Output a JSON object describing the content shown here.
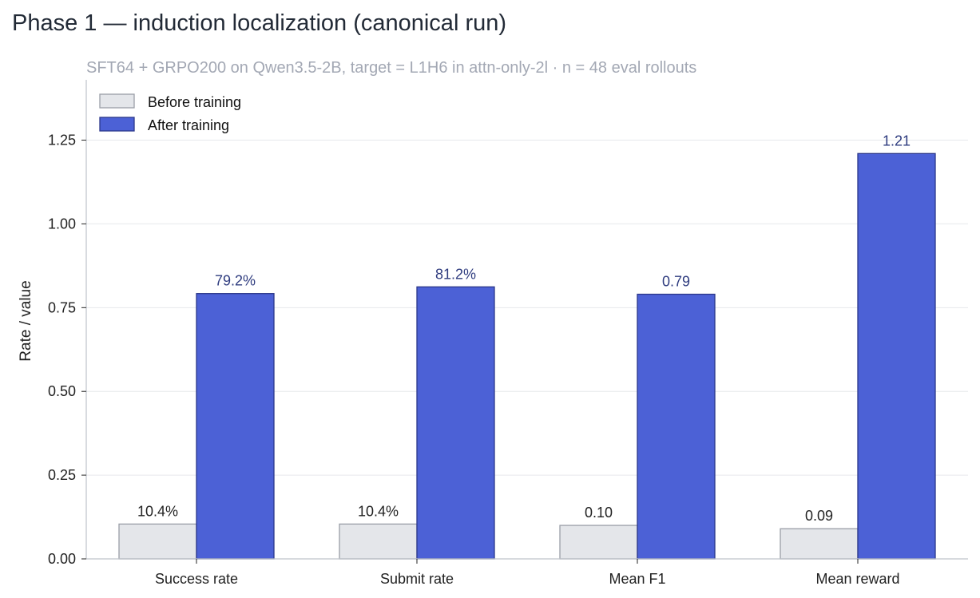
{
  "chart_data": {
    "type": "bar",
    "title": "Phase 1 — induction localization (canonical run)",
    "subtitle": "SFT64 + GRPO200 on Qwen3.5-2B, target = L1H6 in attn-only-2l   ·   n = 48 eval rollouts",
    "xlabel": "",
    "ylabel": "Rate / value",
    "categories": [
      "Success rate",
      "Submit rate",
      "Mean F1",
      "Mean reward"
    ],
    "series": [
      {
        "name": "Before training",
        "values": [
          0.104,
          0.104,
          0.1,
          0.09
        ],
        "labels": [
          "10.4%",
          "10.4%",
          "0.10",
          "0.09"
        ],
        "color": "#e4e6ea",
        "edge": "#9a9ea7"
      },
      {
        "name": "After training",
        "values": [
          0.792,
          0.812,
          0.79,
          1.21
        ],
        "labels": [
          "79.2%",
          "81.2%",
          "0.79",
          "1.21"
        ],
        "color": "#4c61d6",
        "edge": "#2b378a"
      }
    ],
    "ylim": [
      0,
      1.43
    ],
    "yticks": [
      0,
      0.25,
      0.5,
      0.75,
      1.0,
      1.25
    ],
    "ytick_labels": [
      "0.00",
      "0.25",
      "0.50",
      "0.75",
      "1.00",
      "1.25"
    ],
    "grid": "horizontal",
    "legend_position": "top-left"
  }
}
